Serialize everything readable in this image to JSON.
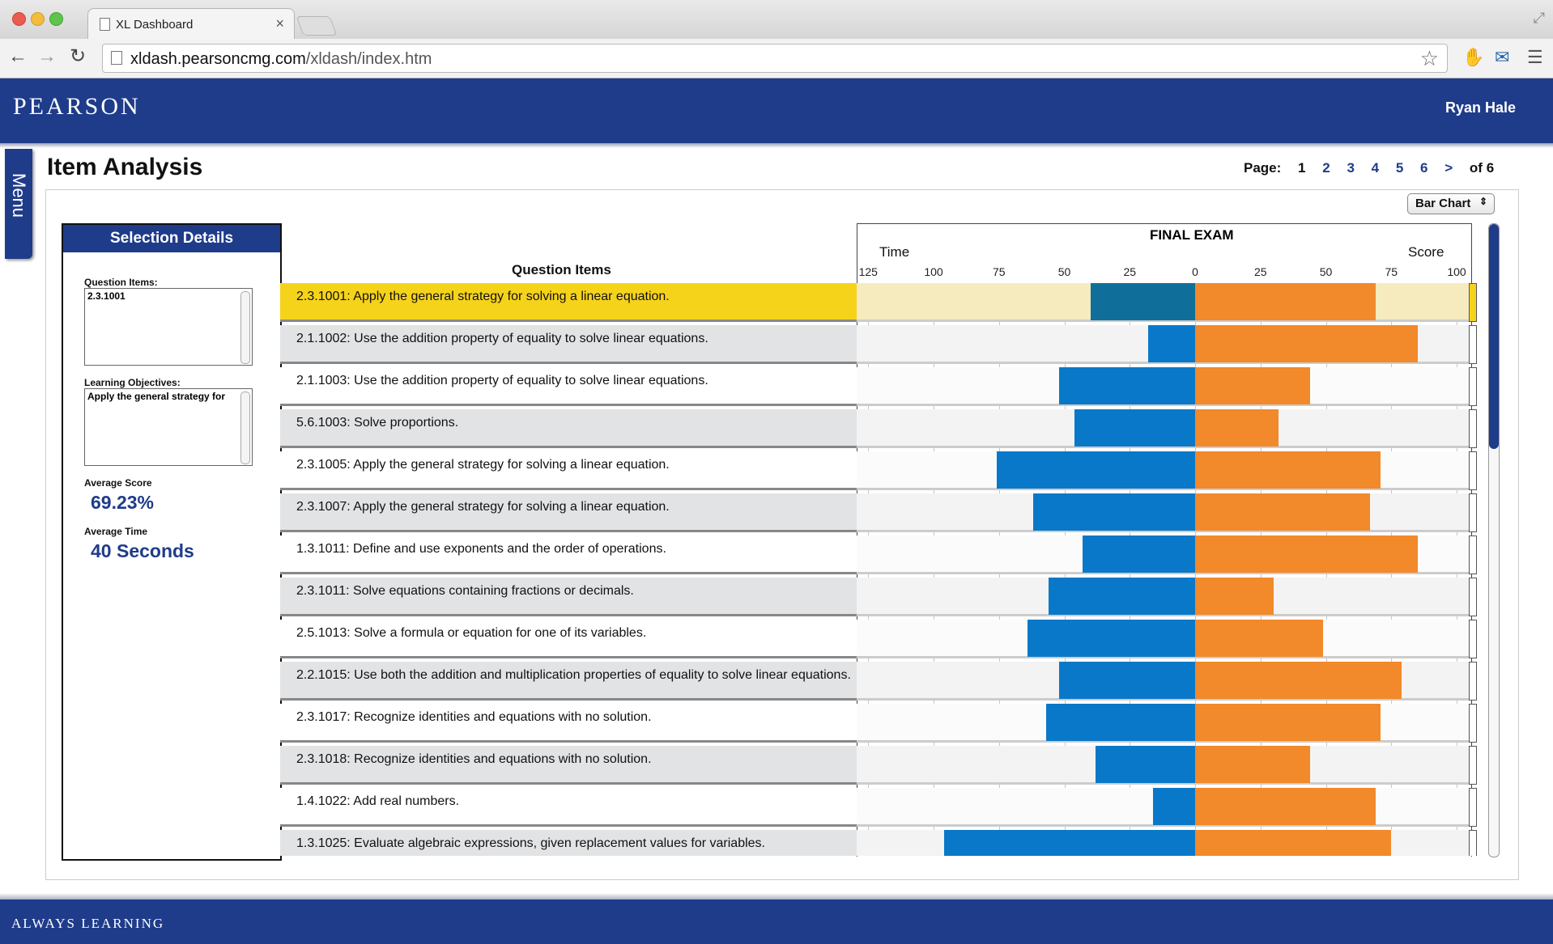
{
  "browser": {
    "tab_title": "XL Dashboard",
    "url_host": "xldash.pearsoncmg.com",
    "url_path": "/xldash/index.htm"
  },
  "header": {
    "logo": "PEARSON",
    "user_name": "Ryan Hale"
  },
  "menu_label": "Menu",
  "page": {
    "title": "Item Analysis",
    "pager": {
      "label": "Page:",
      "pages": [
        "1",
        "2",
        "3",
        "4",
        "5",
        "6"
      ],
      "current": "1",
      "next": ">",
      "of": "of 6"
    },
    "chart_type": "Bar Chart"
  },
  "selection": {
    "heading": "Selection Details",
    "question_items_label": "Question Items:",
    "question_items_value": "2.3.1001",
    "learning_objectives_label": "Learning Objectives:",
    "learning_objectives_value": "Apply the general strategy for",
    "average_score_label": "Average Score",
    "average_score_value": "69.23%",
    "average_time_label": "Average Time",
    "average_time_value": "40 Seconds"
  },
  "table": {
    "question_items_heading": "Question Items"
  },
  "chart_data": {
    "type": "bar",
    "title": "FINAL EXAM",
    "left_axis_label": "Time",
    "right_axis_label": "Score",
    "time_ticks": [
      "125",
      "100",
      "75",
      "50",
      "25",
      "0"
    ],
    "score_ticks": [
      "25",
      "50",
      "75",
      "100"
    ],
    "time_range": [
      0,
      125
    ],
    "score_range": [
      0,
      100
    ],
    "colors": {
      "time": "#0a78c8",
      "time_selected": "#0f6f9a",
      "score": "#f2892a",
      "selected_row": "#f6d31b"
    },
    "selected_index": 0,
    "categories": [
      "2.3.1001: Apply the general strategy for solving a linear equation.",
      "2.1.1002: Use the addition property of equality to solve linear equations.",
      "2.1.1003: Use the addition property of equality to solve linear equations.",
      "5.6.1003: Solve proportions.",
      "2.3.1005: Apply the general strategy for solving a linear equation.",
      "2.3.1007: Apply the general strategy for solving a linear equation.",
      "1.3.1011: Define and use exponents and the order of operations.",
      "2.3.1011: Solve equations containing fractions or decimals.",
      "2.5.1013: Solve a formula or equation for one of its variables.",
      "2.2.1015: Use both the addition and multiplication properties of equality to solve linear equations.",
      "2.3.1017: Recognize identities and equations with no solution.",
      "2.3.1018: Recognize identities and equations with no solution.",
      "1.4.1022: Add real numbers.",
      "1.3.1025: Evaluate algebraic expressions, given replacement values for variables."
    ],
    "series": [
      {
        "name": "Time",
        "values": [
          40,
          18,
          52,
          46,
          76,
          62,
          43,
          56,
          64,
          52,
          57,
          38,
          16,
          96
        ]
      },
      {
        "name": "Score",
        "values": [
          69,
          85,
          44,
          32,
          71,
          67,
          85,
          30,
          49,
          79,
          71,
          44,
          69,
          75
        ]
      }
    ]
  },
  "footer": {
    "tagline": "ALWAYS LEARNING"
  }
}
